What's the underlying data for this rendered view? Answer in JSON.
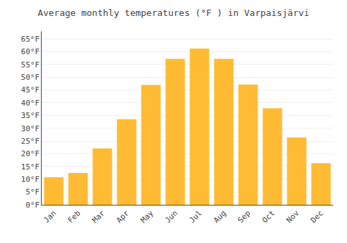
{
  "chart_data": {
    "type": "bar",
    "title": "Average monthly temperatures (°F ) in Varpaisjärvi",
    "categories": [
      "Jan",
      "Feb",
      "Mar",
      "Apr",
      "May",
      "Jun",
      "Jul",
      "Aug",
      "Sep",
      "Oct",
      "Nov",
      "Dec"
    ],
    "values": [
      10.8,
      12.5,
      22.1,
      33.5,
      47.0,
      57.2,
      61.2,
      57.2,
      47.1,
      37.8,
      26.4,
      16.3
    ],
    "color": "#FFBB33",
    "ylim": [
      0,
      68
    ],
    "yticks": [
      {
        "value": 0,
        "label": "0°F"
      },
      {
        "value": 5,
        "label": "5°F"
      },
      {
        "value": 10,
        "label": "10°F"
      },
      {
        "value": 15,
        "label": "15°F"
      },
      {
        "value": 20,
        "label": "20°F"
      },
      {
        "value": 25,
        "label": "25°F"
      },
      {
        "value": 30,
        "label": "30°F"
      },
      {
        "value": 35,
        "label": "35°F"
      },
      {
        "value": 40,
        "label": "40°F"
      },
      {
        "value": 45,
        "label": "45°F"
      },
      {
        "value": 50,
        "label": "50°F"
      },
      {
        "value": 55,
        "label": "55°F"
      },
      {
        "value": 60,
        "label": "60°F"
      },
      {
        "value": 65,
        "label": "65°F"
      }
    ],
    "grid": true
  }
}
